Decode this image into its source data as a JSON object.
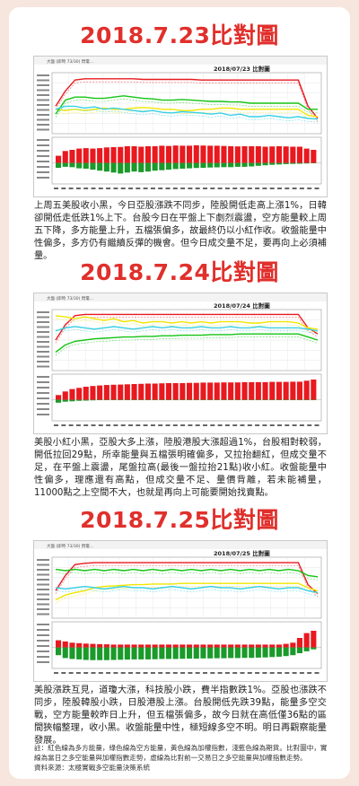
{
  "sections": [
    {
      "title": "2018.7.23比對圖",
      "chart_caption": "2018/07/23  比對圖",
      "app_label": "大盤 (即時 73/30) 閃電…",
      "paragraph": "上周五美股收小黑，今日亞股漲跌不同步，陸股開低走高上漲1%，日韓卻開低走低跌1%上下。台股今日在平盤上下劇烈震盪，空方能量較上周五下降，多方能量上升，五檔張偏多，故最終仍以小紅作收。收盤能量中性偏多，多方仍有繼續反彈的機會。但今日成交量不足，要再向上必須補量。"
    },
    {
      "title": "2018.7.24比對圖",
      "chart_caption": "2018/07/24  比對圖",
      "app_label": "大盤 (即時 73/30) 閃電…",
      "paragraph": "美股小紅小黑，亞股大多上漲，陸股港股大漲超過1%，台股相對較弱，開低拉回29點，所幸能量與五檔張明確偏多，又拉抬翻紅，但成交量不足，在平盤上震盪，尾盤拉高(最後一盤拉抬21點)收小紅。收盤能量中性偏多，理應還有高點，但成交量不足、量價背離，若未能補量，11000點之上空間不大，也就是再向上可能要開始找賣點。"
    },
    {
      "title": "2018.7.25比對圖",
      "chart_caption": "2018/07/25  比對圖",
      "app_label": "大盤 (即時 73/30) 閃電…",
      "paragraph": "美股漲跌互見，道瓊大漲，科技股小跌，費半指數跌1%。亞股也漲跌不同步，陸股韓股小跌，日股港股上漲。台股開低先跌39點，能量多空交戰，空方能量較昨日上升，但五檔張偏多，故今日就在高低僅36點的區間狹幅整理，收小黑。收盤能量中性，極短線多空不明。明日再觀察能量發展。"
    }
  ],
  "footnote": {
    "line1": "註：紅色線為多方能量，綠色線為空方能量，黃色線為加權指數，淺藍色線為期貨。比對圖中，實線為當日之多空能量與加權指數走勢，虛線為比對前一交易日之多空能量與加權指數走勢。",
    "line2": "資料來源：太極實戰多空能量決策系統"
  },
  "colors": {
    "title_red": "#e0302c",
    "long_energy_red": "#e8191f",
    "short_energy_green": "#14c414",
    "index_yellow": "#f2e600",
    "futures_cyan": "#39d0e6",
    "background": "#f7e6de"
  },
  "chart_data": [
    {
      "type": "line",
      "title": "2018/07/23  比對圖",
      "series": [
        {
          "values": [
            0.55,
            0.3,
            0.12,
            0.1,
            0.1,
            0.1,
            0.1,
            0.1,
            0.1,
            0.11,
            0.11,
            0.11,
            0.11,
            0.11,
            0.11,
            0.12,
            0.12,
            0.12,
            0.12,
            0.12,
            0.12,
            0.12,
            0.12,
            0.12,
            0.12,
            0.12,
            0.55,
            0.75
          ]
        },
        {
          "values": [
            0.6,
            0.62,
            0.6,
            0.62,
            0.6,
            0.58,
            0.6,
            0.6,
            0.58,
            0.57,
            0.58,
            0.6,
            0.6,
            0.62,
            0.62,
            0.6,
            0.6,
            0.58,
            0.58,
            0.6,
            0.6,
            0.6,
            0.6,
            0.6,
            0.6,
            0.6,
            0.7,
            0.72
          ]
        },
        {
          "values": [
            0.68,
            0.45,
            0.4,
            0.4,
            0.42,
            0.42,
            0.4,
            0.38,
            0.4,
            0.42,
            0.43,
            0.45,
            0.45,
            0.44,
            0.45,
            0.46,
            0.47,
            0.47,
            0.48,
            0.48,
            0.5,
            0.5,
            0.5,
            0.5,
            0.5,
            0.5,
            0.6,
            0.6
          ]
        },
        {
          "values": [
            0.6,
            0.55,
            0.55,
            0.58,
            0.56,
            0.6,
            0.58,
            0.6,
            0.62,
            0.64,
            0.62,
            0.65,
            0.66,
            0.64,
            0.65,
            0.66,
            0.68,
            0.66,
            0.7,
            0.68,
            0.72,
            0.72,
            0.7,
            0.72,
            0.74,
            0.72,
            0.75,
            0.76
          ]
        }
      ],
      "bars": [
        0.3,
        0.5,
        0.55,
        0.6,
        0.62,
        0.6,
        0.62,
        0.65,
        0.66,
        0.67,
        0.7,
        0.7,
        0.68,
        0.7,
        0.7,
        0.72,
        0.71,
        0.73,
        0.72,
        0.72,
        0.74,
        0.73,
        0.72,
        0.72,
        0.71,
        0.7,
        0.69,
        0.7,
        0.7,
        0.7,
        0.68,
        0.69,
        0.7,
        0.69,
        0.68,
        0.68,
        0.6,
        0.55
      ],
      "neg_bars": [
        0.25,
        0.2,
        0.22,
        0.28,
        0.3,
        0.35,
        0.4,
        0.45,
        0.5,
        0.55,
        0.5,
        0.45,
        0.48,
        0.45,
        0.4,
        0.38,
        0.35,
        0.32,
        0.3,
        0.28,
        0.26,
        0.25,
        0.24,
        0.23,
        0.22,
        0.22,
        0.2,
        0.2,
        0.18,
        0.15,
        0.12,
        0.1,
        0.08,
        0.06,
        0.05,
        0.04,
        0.03,
        0.02
      ]
    },
    {
      "type": "line",
      "title": "2018/07/24  比對圖",
      "series": [
        {
          "values": [
            0.5,
            0.25,
            0.1,
            0.08,
            0.08,
            0.08,
            0.08,
            0.08,
            0.08,
            0.08,
            0.08,
            0.08,
            0.08,
            0.08,
            0.08,
            0.08,
            0.08,
            0.08,
            0.08,
            0.08,
            0.08,
            0.08,
            0.08,
            0.08,
            0.08,
            0.08,
            0.3,
            0.4
          ]
        },
        {
          "values": [
            0.1,
            0.12,
            0.15,
            0.12,
            0.15,
            0.18,
            0.15,
            0.2,
            0.18,
            0.22,
            0.2,
            0.2,
            0.22,
            0.2,
            0.22,
            0.2,
            0.22,
            0.2,
            0.2,
            0.2,
            0.22,
            0.22,
            0.2,
            0.2,
            0.2,
            0.22,
            0.3,
            0.32
          ]
        },
        {
          "values": [
            0.7,
            0.58,
            0.52,
            0.5,
            0.48,
            0.47,
            0.46,
            0.45,
            0.45,
            0.44,
            0.44,
            0.43,
            0.43,
            0.42,
            0.42,
            0.42,
            0.41,
            0.41,
            0.41,
            0.4,
            0.4,
            0.4,
            0.4,
            0.4,
            0.4,
            0.4,
            0.45,
            0.5
          ]
        },
        {
          "values": [
            0.35,
            0.3,
            0.28,
            0.3,
            0.32,
            0.3,
            0.28,
            0.3,
            0.32,
            0.3,
            0.28,
            0.3,
            0.28,
            0.3,
            0.3,
            0.28,
            0.3,
            0.3,
            0.28,
            0.3,
            0.3,
            0.28,
            0.3,
            0.3,
            0.3,
            0.3,
            0.32,
            0.35
          ]
        }
      ],
      "bars": [
        0.2,
        0.35,
        0.45,
        0.5,
        0.55,
        0.58,
        0.6,
        0.62,
        0.63,
        0.64,
        0.65,
        0.66,
        0.67,
        0.68,
        0.68,
        0.69,
        0.7,
        0.7,
        0.7,
        0.71,
        0.71,
        0.72,
        0.72,
        0.72,
        0.73,
        0.73,
        0.73,
        0.74,
        0.74,
        0.74,
        0.74,
        0.75,
        0.75,
        0.75,
        0.76,
        0.76,
        0.8,
        0.85
      ],
      "neg_bars": [
        0.15,
        0.1,
        0.08,
        0.05,
        0.04,
        0.03,
        0.02,
        0.02,
        0.02,
        0.02,
        0.02,
        0.02,
        0.02,
        0.02,
        0.02,
        0.02,
        0.02,
        0.02,
        0.02,
        0.02,
        0.02,
        0.02,
        0.02,
        0.02,
        0.02,
        0.02,
        0.02,
        0.02,
        0.02,
        0.02,
        0.02,
        0.02,
        0.02,
        0.02,
        0.02,
        0.02,
        0.02,
        0.02
      ]
    },
    {
      "type": "line",
      "title": "2018/07/25  比對圖",
      "series": [
        {
          "values": [
            0.55,
            0.3,
            0.12,
            0.1,
            0.09,
            0.09,
            0.09,
            0.09,
            0.09,
            0.09,
            0.09,
            0.09,
            0.09,
            0.09,
            0.09,
            0.09,
            0.09,
            0.09,
            0.09,
            0.09,
            0.09,
            0.09,
            0.09,
            0.09,
            0.09,
            0.09,
            0.45,
            0.6
          ]
        },
        {
          "values": [
            0.7,
            0.62,
            0.58,
            0.55,
            0.5,
            0.48,
            0.47,
            0.46,
            0.45,
            0.45,
            0.44,
            0.44,
            0.44,
            0.43,
            0.43,
            0.43,
            0.43,
            0.43,
            0.43,
            0.43,
            0.43,
            0.43,
            0.43,
            0.43,
            0.43,
            0.43,
            0.5,
            0.55
          ]
        },
        {
          "values": [
            0.2,
            0.22,
            0.2,
            0.22,
            0.2,
            0.22,
            0.2,
            0.22,
            0.2,
            0.22,
            0.2,
            0.22,
            0.2,
            0.22,
            0.2,
            0.22,
            0.2,
            0.22,
            0.2,
            0.22,
            0.2,
            0.22,
            0.2,
            0.22,
            0.2,
            0.22,
            0.3,
            0.32
          ]
        },
        {
          "values": [
            0.5,
            0.52,
            0.5,
            0.48,
            0.5,
            0.52,
            0.5,
            0.48,
            0.5,
            0.5,
            0.52,
            0.5,
            0.48,
            0.5,
            0.52,
            0.5,
            0.48,
            0.5,
            0.5,
            0.52,
            0.5,
            0.48,
            0.5,
            0.52,
            0.5,
            0.5,
            0.55,
            0.58
          ]
        }
      ],
      "bars": [
        0.3,
        0.25,
        0.2,
        0.18,
        0.16,
        0.15,
        0.14,
        0.13,
        0.12,
        0.12,
        0.12,
        0.12,
        0.12,
        0.12,
        0.12,
        0.12,
        0.12,
        0.12,
        0.12,
        0.12,
        0.12,
        0.12,
        0.12,
        0.12,
        0.12,
        0.12,
        0.12,
        0.12,
        0.12,
        0.12,
        0.12,
        0.12,
        0.12,
        0.15,
        0.2,
        0.4,
        0.6,
        0.7
      ],
      "neg_bars": [
        0.4,
        0.55,
        0.6,
        0.62,
        0.65,
        0.66,
        0.66,
        0.66,
        0.65,
        0.64,
        0.63,
        0.62,
        0.62,
        0.62,
        0.61,
        0.6,
        0.6,
        0.6,
        0.59,
        0.58,
        0.58,
        0.57,
        0.57,
        0.56,
        0.56,
        0.55,
        0.55,
        0.54,
        0.54,
        0.53,
        0.52,
        0.5,
        0.48,
        0.45,
        0.4,
        0.3,
        0.2,
        0.1
      ]
    }
  ]
}
